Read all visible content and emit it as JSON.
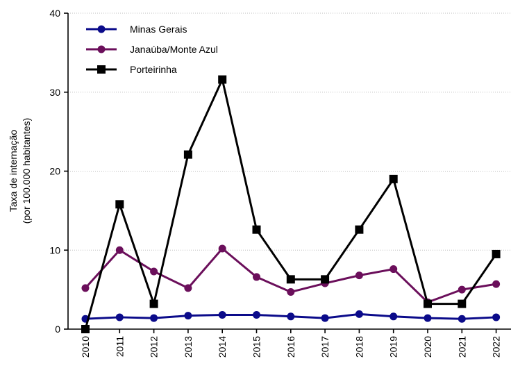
{
  "chart_data": {
    "type": "line",
    "title": "",
    "xlabel": "",
    "ylabel": [
      "Taxa de internação",
      "(por 100.000 habitantes)"
    ],
    "categories": [
      "2010",
      "2011",
      "2012",
      "2013",
      "2014",
      "2015",
      "2016",
      "2017",
      "2018",
      "2019",
      "2020",
      "2021",
      "2022"
    ],
    "ylim": [
      0,
      40
    ],
    "yticks": [
      0,
      10,
      20,
      30,
      40
    ],
    "grid": "horizontal dotted",
    "legend_position": "top-left",
    "series": [
      {
        "name": "Minas Gerais",
        "marker": "circle",
        "color": "#0b0b8a",
        "values": [
          1.3,
          1.5,
          1.4,
          1.7,
          1.8,
          1.8,
          1.6,
          1.4,
          1.9,
          1.6,
          1.4,
          1.3,
          1.5
        ]
      },
      {
        "name": "Janaúba/Monte Azul",
        "marker": "circle",
        "color": "#6b0f5b",
        "values": [
          5.2,
          10.0,
          7.3,
          5.2,
          10.2,
          6.6,
          4.7,
          5.8,
          6.8,
          7.6,
          3.4,
          5.0,
          5.7
        ]
      },
      {
        "name": "Porteirinha",
        "marker": "square",
        "color": "#000000",
        "values": [
          0.0,
          15.8,
          3.2,
          22.1,
          31.6,
          12.6,
          6.3,
          6.3,
          12.6,
          19.0,
          3.2,
          3.2,
          9.5
        ]
      }
    ]
  }
}
